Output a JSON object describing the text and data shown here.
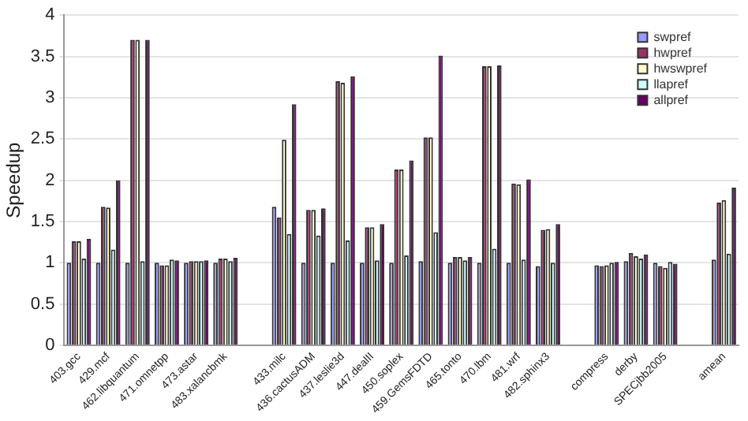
{
  "chart_data": {
    "type": "bar",
    "ylabel": "Speedup",
    "categories": [
      "403.gcc",
      "429.mcf",
      "462.libquantum",
      "471.omnetpp",
      "473.astar",
      "483.xalancbmk",
      null,
      "433.milc",
      "436.cactusADM",
      "437.leslie3d",
      "447.dealII",
      "450.soplex",
      "459.GemsFDTD",
      "465.tonto",
      "470.lbm",
      "481.wrf",
      "482.sphinx3",
      null,
      "compress",
      "derby",
      "SPECjbb2005",
      null,
      "amean"
    ],
    "series": [
      {
        "name": "swpref",
        "color": "#9999ff",
        "values": [
          1.0,
          1.0,
          1.0,
          1.0,
          1.0,
          1.0,
          null,
          1.68,
          1.0,
          1.0,
          1.0,
          1.0,
          1.02,
          1.0,
          1.0,
          1.0,
          0.96,
          null,
          0.97,
          1.02,
          1.0,
          null,
          1.04
        ]
      },
      {
        "name": "hwpref",
        "color": "#993366",
        "values": [
          1.26,
          1.68,
          3.7,
          0.97,
          1.02,
          1.05,
          null,
          1.55,
          1.64,
          3.2,
          1.43,
          2.13,
          2.52,
          1.07,
          3.38,
          1.96,
          1.4,
          null,
          0.96,
          1.12,
          0.96,
          null,
          1.73
        ]
      },
      {
        "name": "hwswpref",
        "color": "#ffffcc",
        "values": [
          1.26,
          1.67,
          3.7,
          0.97,
          1.02,
          1.05,
          null,
          2.49,
          1.64,
          3.18,
          1.43,
          2.13,
          2.52,
          1.07,
          3.38,
          1.95,
          1.41,
          null,
          0.97,
          1.08,
          0.94,
          null,
          1.76
        ]
      },
      {
        "name": "llapref",
        "color": "#ccffff",
        "values": [
          1.05,
          1.16,
          1.02,
          1.04,
          1.02,
          1.02,
          null,
          1.35,
          1.33,
          1.27,
          1.03,
          1.09,
          1.37,
          1.03,
          1.17,
          1.04,
          1.0,
          null,
          1.0,
          1.05,
          1.01,
          null,
          1.11
        ]
      },
      {
        "name": "allpref",
        "color": "#660066",
        "values": [
          1.29,
          2.0,
          3.7,
          1.03,
          1.03,
          1.06,
          null,
          2.92,
          1.66,
          3.26,
          1.47,
          2.24,
          3.51,
          1.07,
          3.39,
          2.01,
          1.47,
          null,
          1.01,
          1.1,
          0.99,
          null,
          1.91
        ]
      }
    ],
    "ylim": [
      0,
      4
    ],
    "yticks": [
      0,
      0.5,
      1,
      1.5,
      2,
      2.5,
      3,
      3.5,
      4
    ],
    "grid": "y",
    "legend": "top right"
  }
}
